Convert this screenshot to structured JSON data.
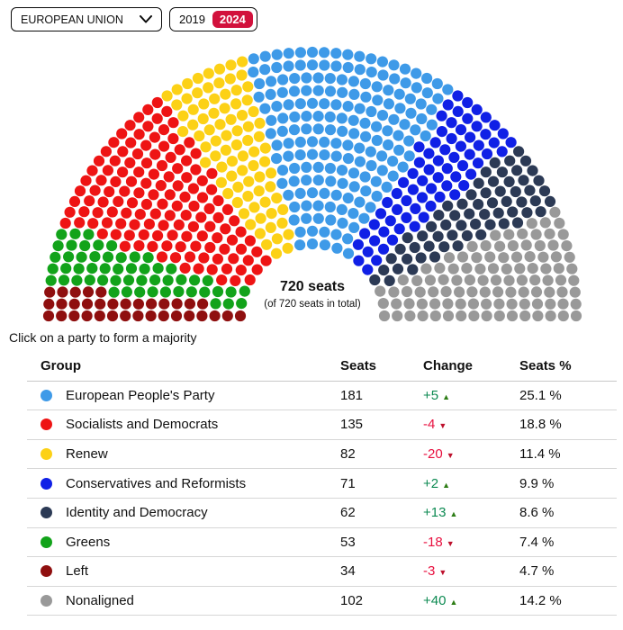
{
  "header": {
    "region_selector": {
      "value": "EUROPEAN UNION"
    },
    "year_toggle": {
      "years": [
        "2019",
        "2024"
      ],
      "selected": "2024"
    }
  },
  "colors": {
    "accent_selected_year": "#d2113c",
    "positive_change": "#0d8a52",
    "negative_change": "#e8103f"
  },
  "instruction": "Click on a party to form a majority",
  "table": {
    "columns": [
      "Group",
      "Seats",
      "Change",
      "Seats %"
    ]
  },
  "chart_data": {
    "type": "parliament",
    "total_seats": 720,
    "center_label": "720 seats",
    "center_sublabel": "(of 720 seats in total)",
    "hemicycle_order": [
      "Left",
      "Greens",
      "Socialists and Democrats",
      "Renew",
      "European People's Party",
      "Conservatives and Reformists",
      "Identity and Democracy",
      "Nonaligned"
    ],
    "groups": [
      {
        "name": "European People's Party",
        "seats": 181,
        "change": "+5",
        "trend": "up",
        "percent": "25.1 %",
        "color": "#3e9ae8"
      },
      {
        "name": "Socialists and Democrats",
        "seats": 135,
        "change": "-4",
        "trend": "down",
        "percent": "18.8 %",
        "color": "#ee1414"
      },
      {
        "name": "Renew",
        "seats": 82,
        "change": "-20",
        "trend": "down",
        "percent": "11.4 %",
        "color": "#fcd116"
      },
      {
        "name": "Conservatives and Reformists",
        "seats": 71,
        "change": "+2",
        "trend": "up",
        "percent": "9.9 %",
        "color": "#1020e6"
      },
      {
        "name": "Identity and Democracy",
        "seats": 62,
        "change": "+13",
        "trend": "up",
        "percent": "8.6 %",
        "color": "#2c3a55"
      },
      {
        "name": "Greens",
        "seats": 53,
        "change": "-18",
        "trend": "down",
        "percent": "7.4 %",
        "color": "#12a31a"
      },
      {
        "name": "Left",
        "seats": 34,
        "change": "-3",
        "trend": "down",
        "percent": "4.7 %",
        "color": "#8f0f0f"
      },
      {
        "name": "Nonaligned",
        "seats": 102,
        "change": "+40",
        "trend": "up",
        "percent": "14.2 %",
        "color": "#999999"
      }
    ]
  }
}
